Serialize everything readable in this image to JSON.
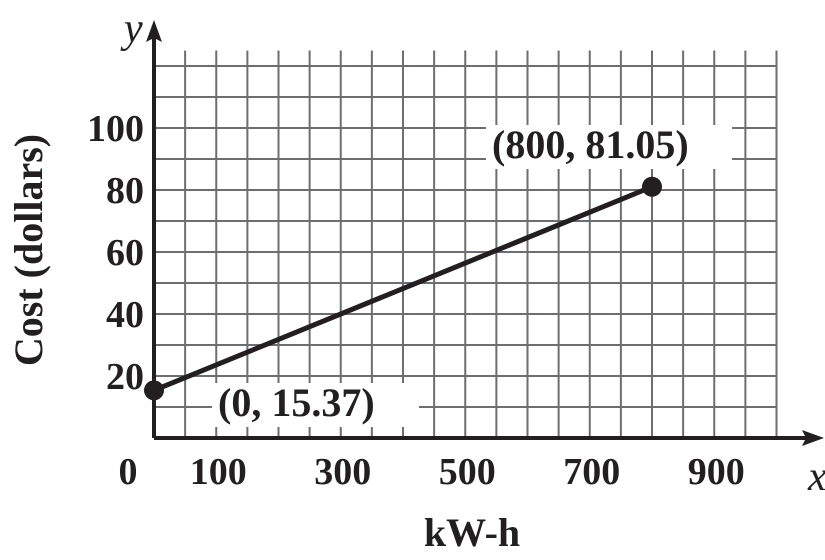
{
  "chart_data": {
    "type": "line",
    "xlabel": "kW-h",
    "ylabel": "Cost (dollars)",
    "x_axis_letter": "x",
    "y_axis_letter": "y",
    "xlim": [
      0,
      1000
    ],
    "ylim": [
      0,
      125
    ],
    "x_grid_step": 50,
    "y_grid_step": 10,
    "grid": true,
    "x_ticks": [
      0,
      100,
      300,
      500,
      700,
      900
    ],
    "x_tick_labels": [
      "0",
      "100",
      "300",
      "500",
      "700",
      "900"
    ],
    "y_ticks": [
      20,
      40,
      60,
      80,
      100
    ],
    "y_tick_labels": [
      "20",
      "40",
      "60",
      "80",
      "100"
    ],
    "series": [
      {
        "x": [
          0,
          800
        ],
        "y": [
          15.37,
          81.05
        ]
      }
    ],
    "annotations": [
      {
        "x": 0,
        "y": 15.37,
        "text": "(0, 15.37)"
      },
      {
        "x": 800,
        "y": 81.05,
        "text": "(800, 81.05)"
      }
    ],
    "colors": {
      "ink": "#231f20",
      "grid": "#6d6e71"
    }
  }
}
